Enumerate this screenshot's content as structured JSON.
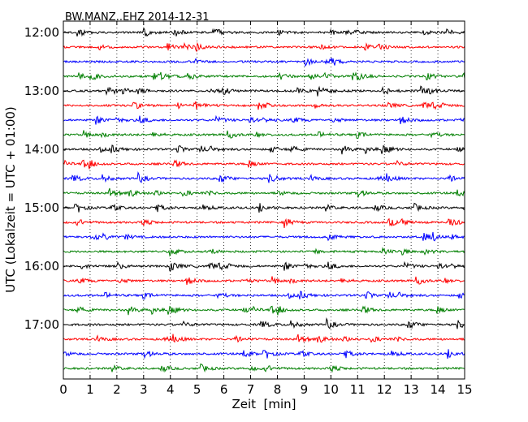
{
  "chart_data": {
    "type": "line",
    "title": "BW.MANZ..EHZ 2014-12-31",
    "xlabel": "Zeit  [min]",
    "ylabel": "UTC (Lokalzeit = UTC + 01:00)",
    "xlim": [
      0,
      15
    ],
    "x_ticks": [
      "0",
      "1",
      "2",
      "3",
      "4",
      "5",
      "6",
      "7",
      "8",
      "9",
      "10",
      "11",
      "12",
      "13",
      "14",
      "15"
    ],
    "y_ticks": [
      "12:00",
      "13:00",
      "14:00",
      "15:00",
      "16:00",
      "17:00"
    ],
    "grid": "vertical-dotted",
    "trace_interval_min": 15,
    "start_time": "12:00",
    "trace_count": 24,
    "trace_colors": [
      "#000000",
      "#ff0000",
      "#0000ff",
      "#007f00"
    ]
  }
}
